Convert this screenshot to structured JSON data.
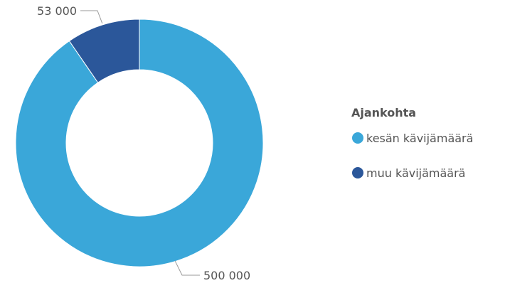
{
  "chart_data": {
    "type": "pie",
    "variant": "donut",
    "title": "",
    "legend": {
      "title": "Ajankohta",
      "placement": "right"
    },
    "categories": [
      "kesän kävijämäärä",
      "muu kävijämäärä"
    ],
    "values": [
      500000,
      53000
    ],
    "data_labels": [
      "500 000",
      "53 000"
    ],
    "colors": [
      "#3aa7d9",
      "#2b579a"
    ]
  }
}
